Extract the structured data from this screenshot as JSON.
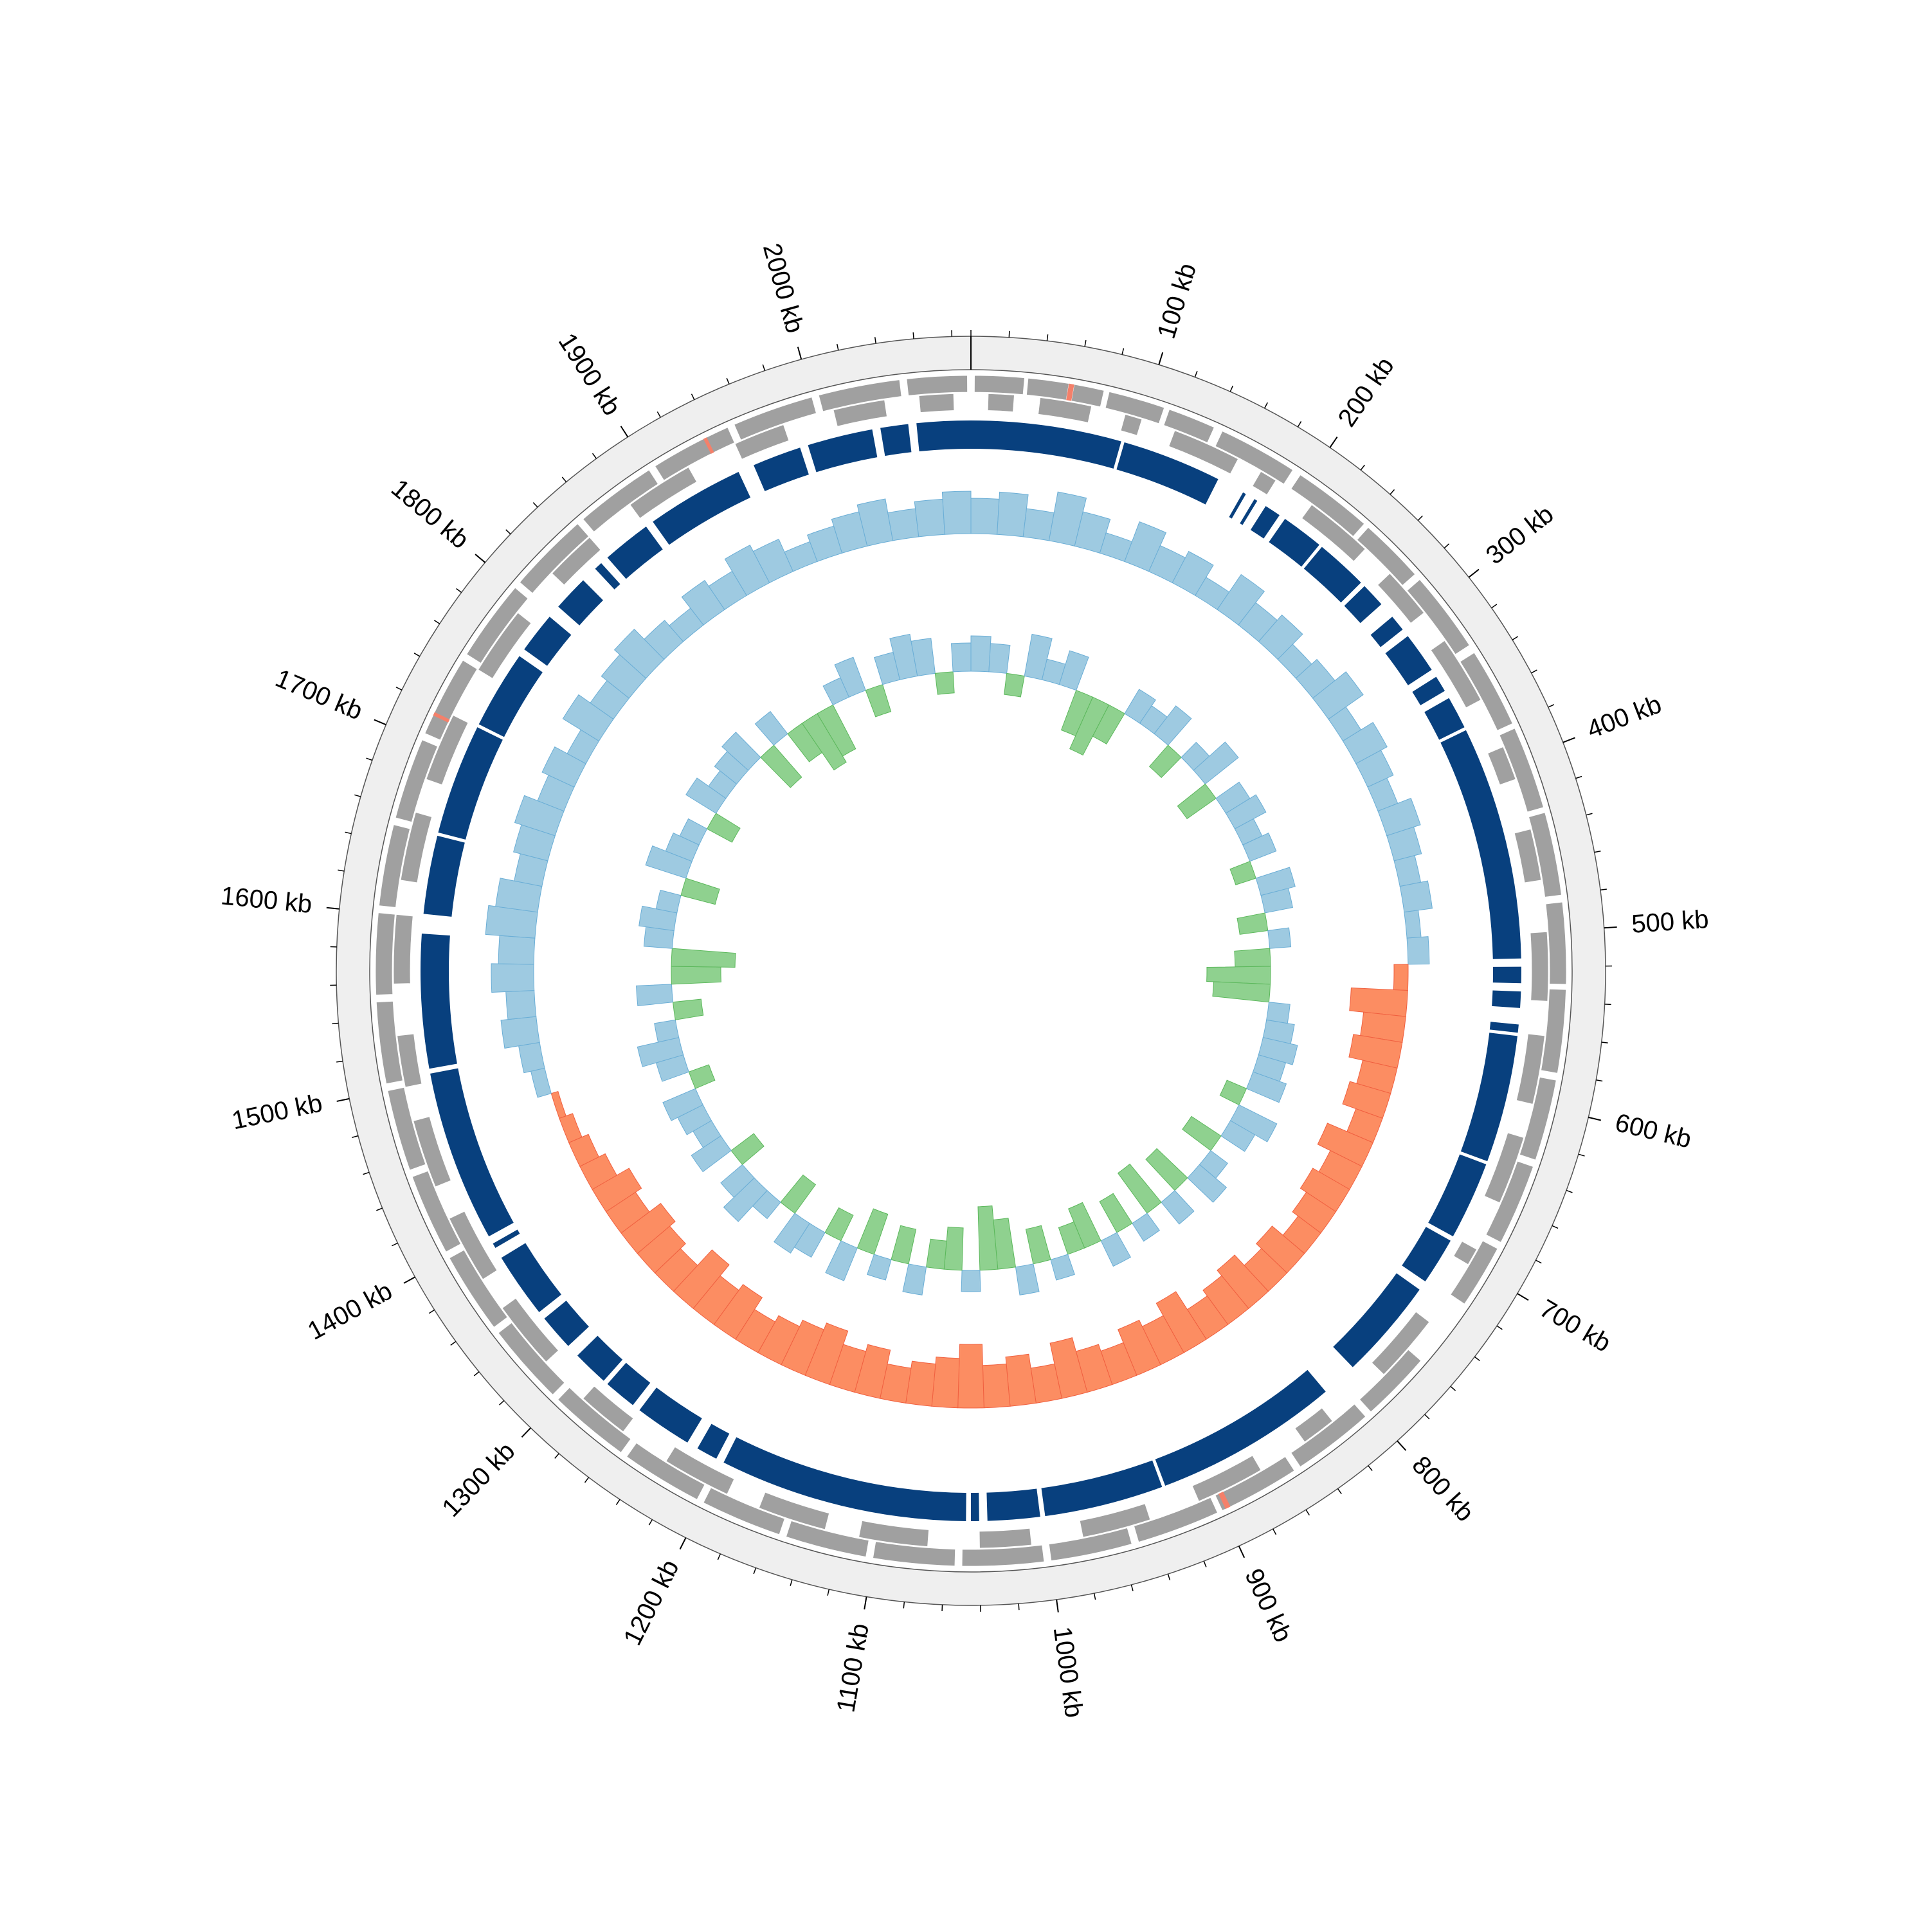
{
  "chart_data": {
    "type": "circular-genome",
    "genome_length": 2090,
    "xticks": [
      {
        "value": 100,
        "label": "100 kb"
      },
      {
        "value": 200,
        "label": "200 kb"
      },
      {
        "value": 300,
        "label": "300 kb"
      },
      {
        "value": 400,
        "label": "400 kb"
      },
      {
        "value": 500,
        "label": "500 kb"
      },
      {
        "value": 600,
        "label": "600 kb"
      },
      {
        "value": 700,
        "label": "700 kb"
      },
      {
        "value": 800,
        "label": "800 kb"
      },
      {
        "value": 900,
        "label": "900 kb"
      },
      {
        "value": 1000,
        "label": "1000 kb"
      },
      {
        "value": 1100,
        "label": "1100 kb"
      },
      {
        "value": 1200,
        "label": "1200 kb"
      },
      {
        "value": 1300,
        "label": "1300 kb"
      },
      {
        "value": 1400,
        "label": "1400 kb"
      },
      {
        "value": 1500,
        "label": "1500 kb"
      },
      {
        "value": 1600,
        "label": "1600 kb"
      },
      {
        "value": 1700,
        "label": "1700 kb"
      },
      {
        "value": 1800,
        "label": "1800 kb"
      },
      {
        "value": 1900,
        "label": "1900 kb"
      },
      {
        "value": 2000,
        "label": "2000 kb"
      }
    ],
    "minor_tick_step": 20,
    "feature_tracks": [
      {
        "color": "#a0a0a0",
        "intervals": [
          [
            2,
            30
          ],
          [
            32,
            55
          ],
          [
            58,
            75
          ],
          [
            78,
            110
          ],
          [
            113,
            140
          ],
          [
            145,
            190
          ],
          [
            195,
            240
          ],
          [
            243,
            280
          ],
          [
            284,
            330
          ],
          [
            335,
            380
          ],
          [
            383,
            430
          ],
          [
            433,
            480
          ],
          [
            484,
            530
          ],
          [
            533,
            580
          ],
          [
            584,
            630
          ],
          [
            634,
            680
          ],
          [
            684,
            720
          ],
          [
            760,
            800
          ],
          [
            804,
            850
          ],
          [
            854,
            900
          ],
          [
            903,
            950
          ],
          [
            954,
            1000
          ],
          [
            1004,
            1050
          ],
          [
            1054,
            1100
          ],
          [
            1104,
            1150
          ],
          [
            1154,
            1200
          ],
          [
            1204,
            1250
          ],
          [
            1254,
            1300
          ],
          [
            1304,
            1350
          ],
          [
            1354,
            1400
          ],
          [
            1404,
            1450
          ],
          [
            1454,
            1500
          ],
          [
            1504,
            1550
          ],
          [
            1554,
            1600
          ],
          [
            1604,
            1650
          ],
          [
            1654,
            1700
          ],
          [
            1704,
            1750
          ],
          [
            1754,
            1800
          ],
          [
            1804,
            1850
          ],
          [
            1854,
            1900
          ],
          [
            1904,
            1950
          ],
          [
            1954,
            2000
          ],
          [
            2004,
            2050
          ],
          [
            2054,
            2088
          ]
        ]
      },
      {
        "color": "#a0a0a0",
        "intervals": [
          [
            10,
            25
          ],
          [
            40,
            70
          ],
          [
            90,
            100
          ],
          [
            120,
            160
          ],
          [
            175,
            185
          ],
          [
            210,
            250
          ],
          [
            270,
            300
          ],
          [
            320,
            360
          ],
          [
            390,
            410
          ],
          [
            440,
            470
          ],
          [
            500,
            540
          ],
          [
            560,
            600
          ],
          [
            620,
            660
          ],
          [
            690,
            700
          ],
          [
            740,
            780
          ],
          [
            820,
            840
          ],
          [
            870,
            910
          ],
          [
            940,
            980
          ],
          [
            1010,
            1040
          ],
          [
            1070,
            1110
          ],
          [
            1130,
            1170
          ],
          [
            1190,
            1230
          ],
          [
            1260,
            1290
          ],
          [
            1320,
            1360
          ],
          [
            1380,
            1420
          ],
          [
            1440,
            1480
          ],
          [
            1500,
            1530
          ],
          [
            1560,
            1600
          ],
          [
            1620,
            1660
          ],
          [
            1680,
            1720
          ],
          [
            1750,
            1790
          ],
          [
            1820,
            1850
          ],
          [
            1880,
            1920
          ],
          [
            1950,
            1980
          ],
          [
            2010,
            2040
          ],
          [
            2060,
            2080
          ]
        ]
      }
    ],
    "highlight_features": {
      "color": "#f4806a",
      "intervals": [
        [
          55,
          58
        ],
        [
          895,
          898
        ],
        [
          1715,
          1717
        ],
        [
          1935,
          1937
        ]
      ]
    },
    "blocks": {
      "color": "#08407e",
      "intervals": [
        [
          0,
          92
        ],
        [
          94,
          155
        ],
        [
          172,
          174
        ],
        [
          180,
          182
        ],
        [
          188,
          198
        ],
        [
          202,
          228
        ],
        [
          230,
          262
        ],
        [
          265,
          280
        ],
        [
          290,
          300
        ],
        [
          305,
          330
        ],
        [
          335,
          345
        ],
        [
          350,
          370
        ],
        [
          372,
          515
        ],
        [
          520,
          530
        ],
        [
          535,
          545
        ],
        [
          555,
          560
        ],
        [
          562,
          640
        ],
        [
          642,
          690
        ],
        [
          693,
          722
        ],
        [
          728,
          790
        ],
        [
          812,
          925
        ],
        [
          927,
          1000
        ],
        [
          1003,
          1035
        ],
        [
          1040,
          1045
        ],
        [
          1048,
          1200
        ],
        [
          1205,
          1218
        ],
        [
          1225,
          1260
        ],
        [
          1265,
          1285
        ],
        [
          1288,
          1310
        ],
        [
          1318,
          1340
        ],
        [
          1345,
          1385
        ],
        [
          1392,
          1395
        ],
        [
          1400,
          1505
        ],
        [
          1508,
          1590
        ],
        [
          1602,
          1650
        ],
        [
          1652,
          1720
        ],
        [
          1722,
          1770
        ],
        [
          1775,
          1800
        ],
        [
          1808,
          1830
        ],
        [
          1840,
          1845
        ],
        [
          1850,
          1880
        ],
        [
          1885,
          1945
        ],
        [
          1955,
          1985
        ],
        [
          1990,
          2030
        ],
        [
          2035,
          2052
        ],
        [
          2057,
          2090
        ]
      ]
    },
    "skew": {
      "positive_color": "#9ecae1",
      "negative_color": "#fc8d62",
      "values": [
        0.5,
        0.6,
        0.4,
        0.7,
        0.5,
        0.3,
        0.6,
        0.4,
        0.5,
        0.3,
        0.6,
        0.4,
        0.5,
        0.3,
        0.4,
        0.6,
        0.3,
        0.5,
        0.4,
        0.3,
        0.5,
        0.4,
        0.3,
        0.4,
        0.2,
        0.3,
        -0.2,
        -0.8,
        -0.6,
        -0.7,
        -0.5,
        -0.6,
        -0.4,
        -0.7,
        -0.5,
        -0.6,
        -0.5,
        -0.4,
        -0.6,
        -0.5,
        -0.7,
        -0.6,
        -0.5,
        -0.8,
        -0.6,
        -0.7,
        -0.5,
        -0.6,
        -0.8,
        -0.5,
        -0.7,
        -0.6,
        -0.9,
        -0.7,
        -0.6,
        -0.5,
        -0.7,
        -0.6,
        -0.8,
        -0.7,
        -0.6,
        -0.5,
        -0.7,
        -0.6,
        -0.8,
        -0.5,
        -0.6,
        -0.7,
        -0.5,
        -0.6,
        -0.4,
        -0.3,
        -0.2,
        -0.1,
        0.2,
        0.3,
        0.5,
        0.4,
        0.6,
        0.5,
        0.7,
        0.6,
        0.4,
        0.5,
        0.6,
        0.4,
        0.5,
        0.3,
        0.6,
        0.4,
        0.5,
        0.6,
        0.4,
        0.3,
        0.5,
        0.4,
        0.6,
        0.5,
        0.3,
        0.4,
        0.5,
        0.6,
        0.4,
        0.5,
        0.6
      ]
    },
    "gc": {
      "positive_color": "#9ecae1",
      "negative_color": "#8fd18f",
      "values": [
        0.5,
        0.4,
        -0.3,
        0.6,
        0.3,
        0.5,
        -0.6,
        -0.8,
        -0.5,
        0.4,
        0.3,
        0.5,
        -0.4,
        0.3,
        0.6,
        -0.5,
        0.4,
        0.5,
        0.3,
        0.4,
        -0.3,
        0.5,
        0.4,
        -0.4,
        0.3,
        -0.5,
        -0.9,
        -0.8,
        0.3,
        0.4,
        0.5,
        0.4,
        0.5,
        -0.3,
        0.6,
        0.4,
        -0.5,
        0.3,
        0.5,
        -0.6,
        0.4,
        -0.7,
        0.3,
        -0.5,
        0.4,
        -0.6,
        -0.4,
        0.3,
        -0.5,
        0.4,
        -0.7,
        -0.9,
        0.3,
        -0.6,
        -0.4,
        0.4,
        -0.5,
        0.3,
        -0.6,
        0.5,
        -0.4,
        0.4,
        0.5,
        -0.5,
        0.3,
        0.6,
        0.4,
        -0.4,
        0.5,
        0.3,
        0.4,
        0.5,
        -0.3,
        0.4,
        0.6,
        0.3,
        -0.4,
        0.5,
        -0.7,
        -0.9,
        0.4,
        0.5,
        0.3,
        -0.5,
        0.6,
        0.4,
        0.3,
        -0.4,
        0.5,
        0.3,
        0.4,
        0.5,
        -0.6,
        0.4,
        -0.5,
        -0.8,
        -0.7,
        0.3,
        0.5,
        -0.4,
        0.4,
        0.6,
        0.5,
        -0.3,
        0.4
      ]
    }
  }
}
